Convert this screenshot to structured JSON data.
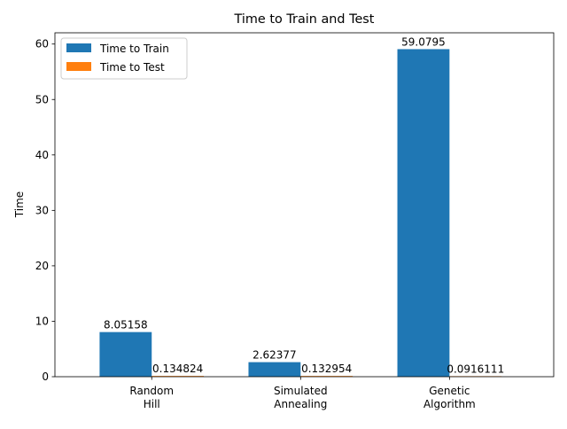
{
  "chart_data": {
    "type": "bar",
    "title": "Time to Train and Test",
    "xlabel": "",
    "ylabel": "Time",
    "categories": [
      [
        "Random",
        "Hill"
      ],
      [
        "Simulated",
        "Annealing"
      ],
      [
        "Genetic",
        "Algorithm"
      ]
    ],
    "series": [
      {
        "name": "Time to Train",
        "color": "#1f77b4",
        "values": [
          8.05158,
          2.62377,
          59.0795
        ],
        "labels": [
          "8.05158",
          "2.62377",
          "59.0795"
        ]
      },
      {
        "name": "Time to Test",
        "color": "#ff7f0e",
        "values": [
          0.134824,
          0.132954,
          0.0916111
        ],
        "labels": [
          "0.134824",
          "0.132954",
          "0.0916111"
        ]
      }
    ],
    "ylim": [
      0,
      62.03
    ],
    "yticks": [
      0,
      10,
      20,
      30,
      40,
      50,
      60
    ],
    "grid": false,
    "legend_position": "top-left"
  }
}
